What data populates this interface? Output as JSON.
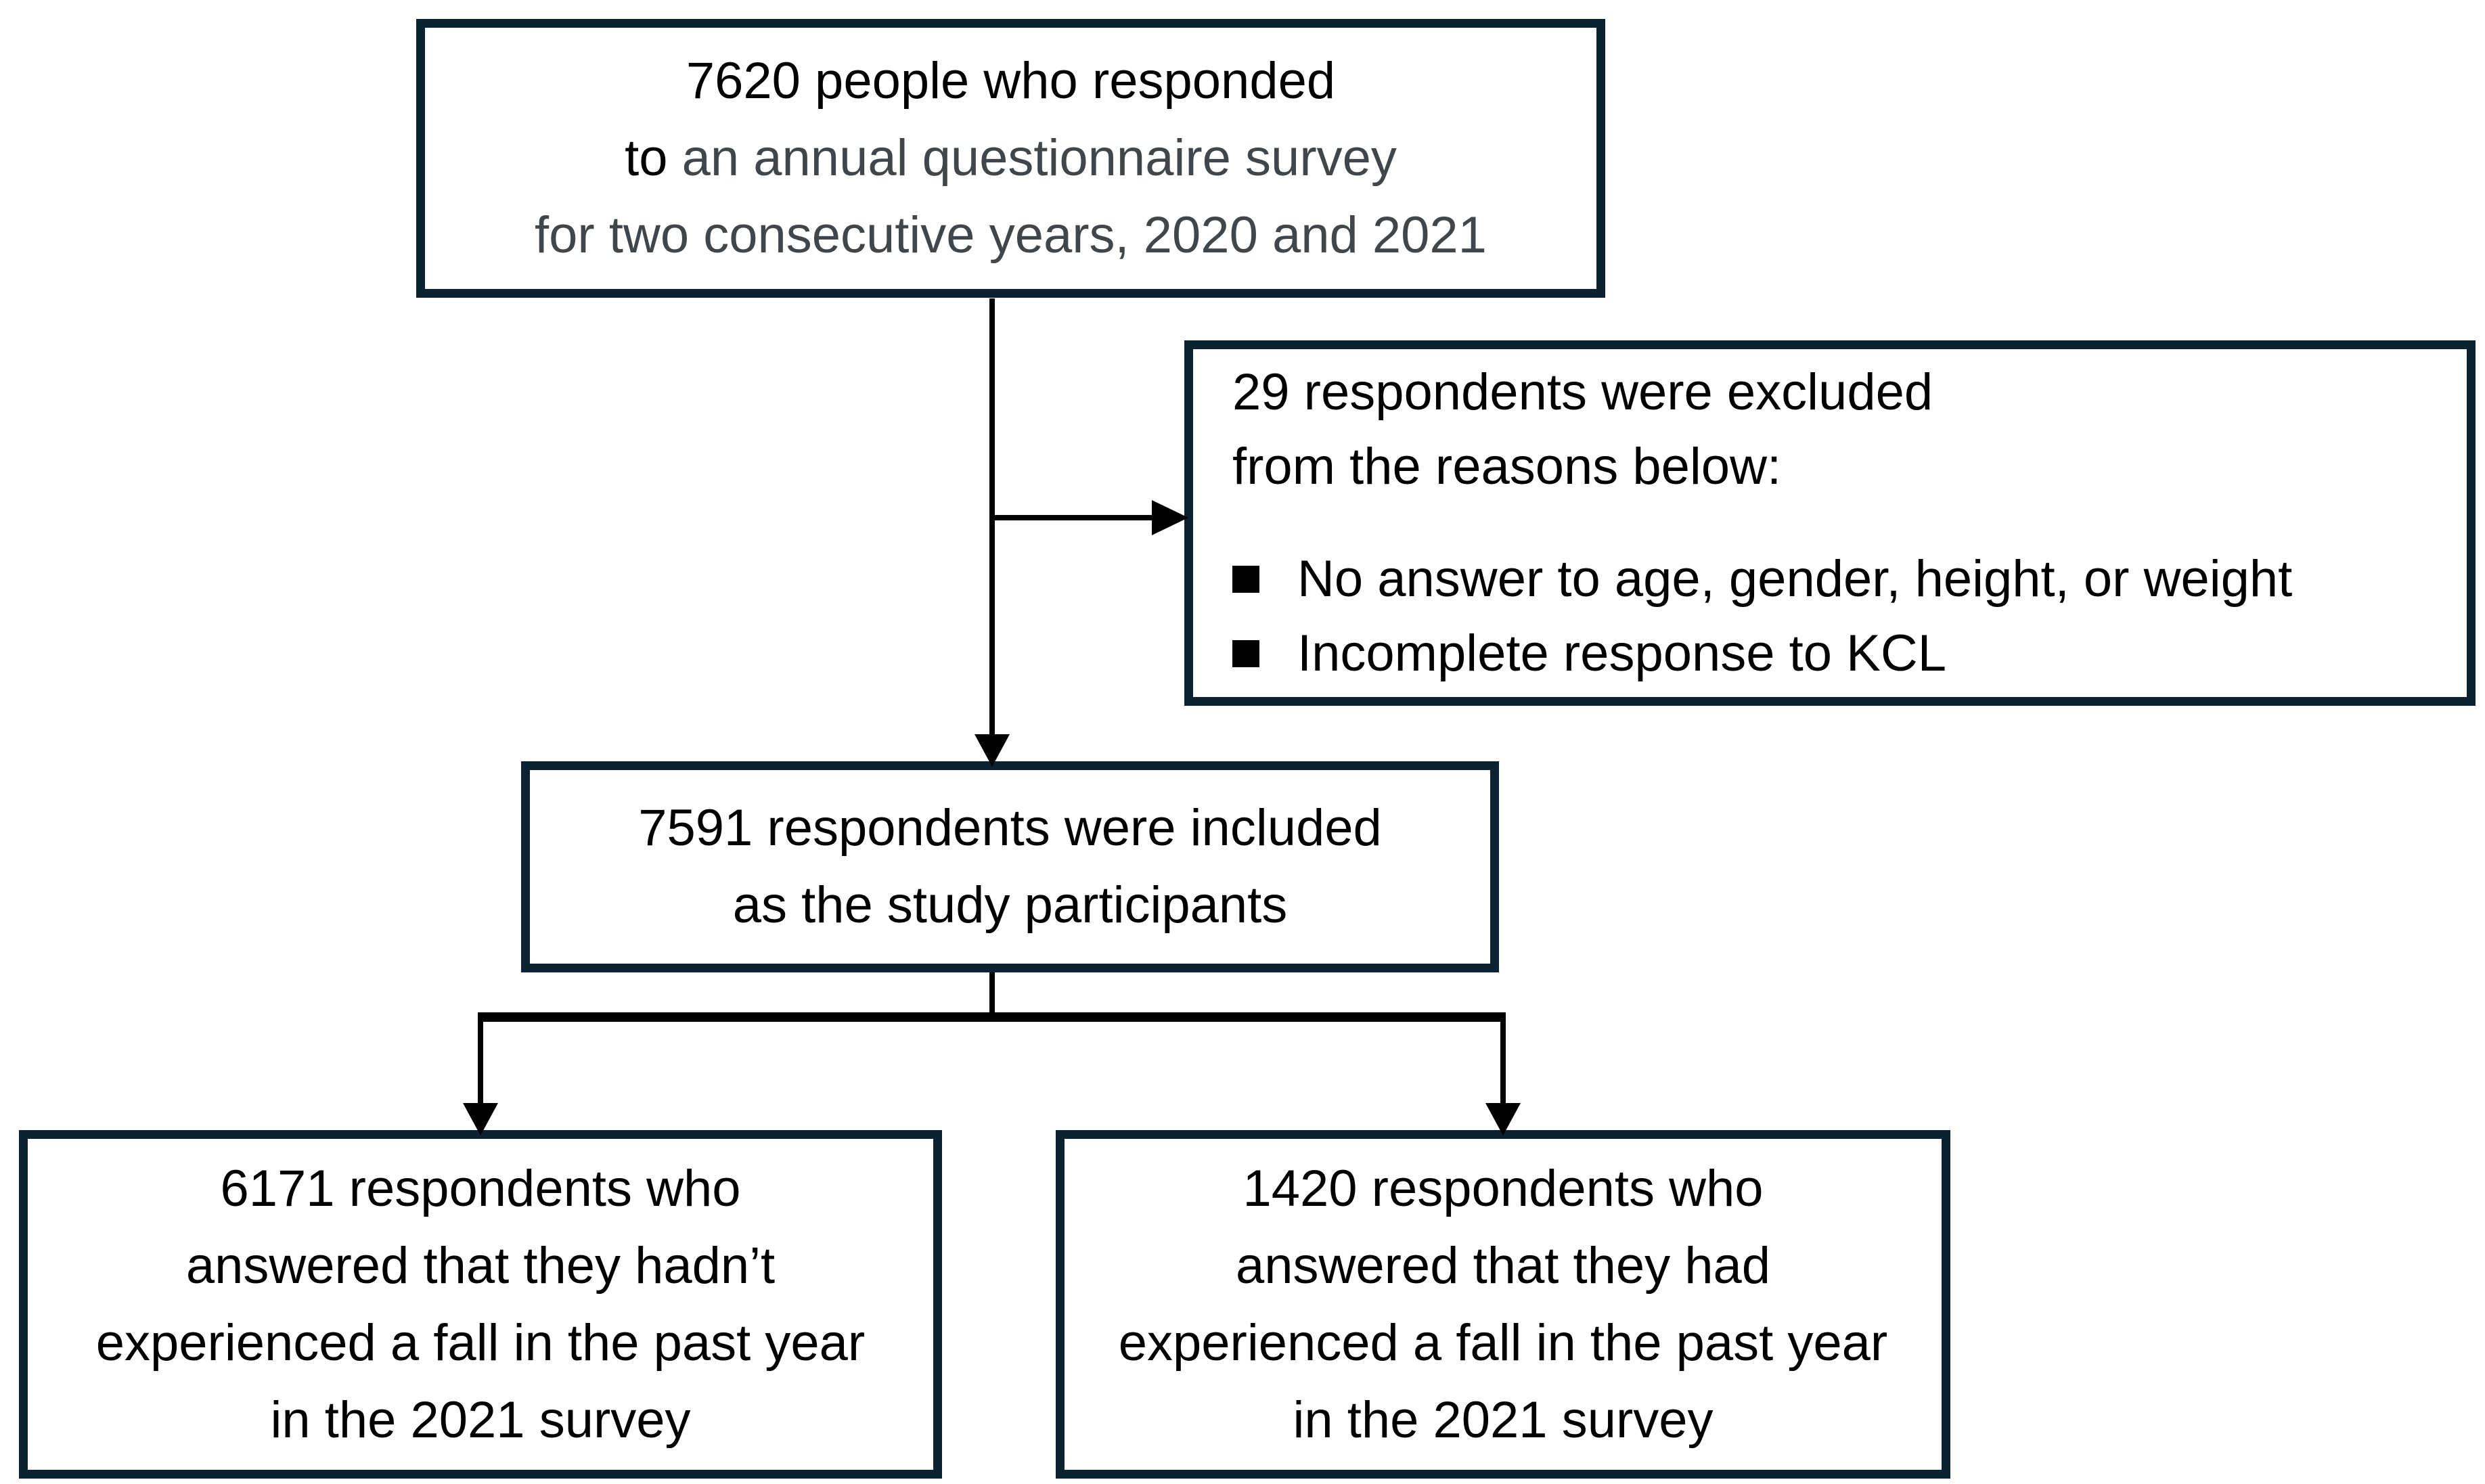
{
  "flowchart": {
    "source_box": {
      "line1": "7620 people who responded",
      "line2_prefix": "to ",
      "line2_rest": "an annual questionnaire survey",
      "line3": "for two consecutive years, 2020 and 2021"
    },
    "exclusion_box": {
      "line1": "29 respondents were excluded",
      "line2": "from the reasons below:",
      "bullet1": "No answer to age, gender, height, or weight",
      "bullet2": "Incomplete response to KCL"
    },
    "included_box": {
      "line1": "7591 respondents were included",
      "line2": "as the study participants"
    },
    "no_fall_box": {
      "line1": "6171 respondents who",
      "line2": "answered that they hadn’t",
      "line3": "experienced a fall in the past year",
      "line4": "in the 2021 survey"
    },
    "fall_box": {
      "line1": "1420 respondents who",
      "line2": "answered that they had",
      "line3": "experienced a fall in the past year",
      "line4": "in the 2021 survey"
    },
    "colors": {
      "box_border": "#0b2232",
      "text_primary": "#000000",
      "text_secondary": "#41464a",
      "connector": "#000000",
      "background": "#ffffff"
    }
  }
}
